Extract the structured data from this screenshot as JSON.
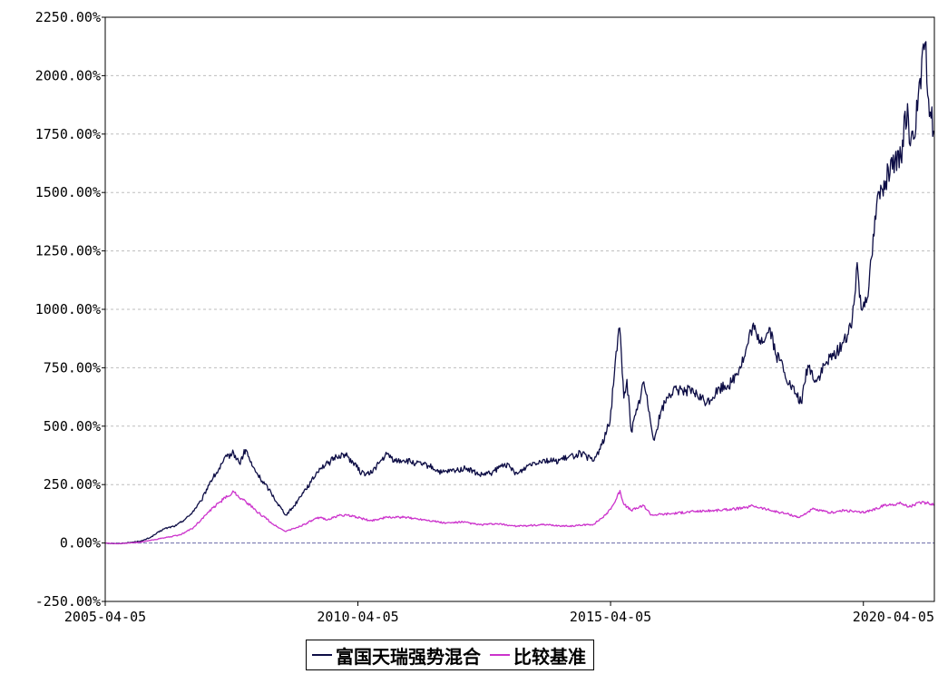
{
  "chart_data": {
    "type": "line",
    "title": "",
    "xlabel": "",
    "ylabel": "",
    "x_ticks": [
      "2005-04-05",
      "2010-04-05",
      "2015-04-05",
      "2020-04-05"
    ],
    "y_ticks": [
      "-250.00%",
      "0.00%",
      "250.00%",
      "500.00%",
      "750.00%",
      "1000.00%",
      "1250.00%",
      "1500.00%",
      "1750.00%",
      "2000.00%",
      "2250.00%"
    ],
    "ylim": [
      -250,
      2250
    ],
    "xlim": [
      "2005-04-05",
      "2021-08-31"
    ],
    "grid": true,
    "legend_position": "bottom",
    "series": [
      {
        "name": "富国天瑞强势混合",
        "color": "#0d0d45",
        "points": [
          [
            "2005-04-05",
            0
          ],
          [
            "2005-07-01",
            -3
          ],
          [
            "2005-10-01",
            2
          ],
          [
            "2006-01-01",
            10
          ],
          [
            "2006-03-01",
            25
          ],
          [
            "2006-06-01",
            60
          ],
          [
            "2006-09-01",
            75
          ],
          [
            "2006-12-01",
            115
          ],
          [
            "2007-03-01",
            180
          ],
          [
            "2007-05-01",
            260
          ],
          [
            "2007-07-01",
            310
          ],
          [
            "2007-09-01",
            370
          ],
          [
            "2007-10-20",
            385
          ],
          [
            "2007-12-01",
            340
          ],
          [
            "2008-01-15",
            400
          ],
          [
            "2008-03-01",
            330
          ],
          [
            "2008-05-01",
            275
          ],
          [
            "2008-07-01",
            230
          ],
          [
            "2008-09-01",
            170
          ],
          [
            "2008-11-01",
            120
          ],
          [
            "2009-01-01",
            160
          ],
          [
            "2009-03-01",
            215
          ],
          [
            "2009-05-01",
            260
          ],
          [
            "2009-07-01",
            320
          ],
          [
            "2009-09-01",
            340
          ],
          [
            "2009-11-01",
            370
          ],
          [
            "2010-01-01",
            380
          ],
          [
            "2010-03-01",
            345
          ],
          [
            "2010-05-01",
            300
          ],
          [
            "2010-07-01",
            295
          ],
          [
            "2010-09-01",
            340
          ],
          [
            "2010-11-01",
            380
          ],
          [
            "2011-01-01",
            350
          ],
          [
            "2011-03-01",
            355
          ],
          [
            "2011-06-01",
            340
          ],
          [
            "2011-09-01",
            330
          ],
          [
            "2011-12-01",
            300
          ],
          [
            "2012-03-01",
            310
          ],
          [
            "2012-06-01",
            320
          ],
          [
            "2012-09-01",
            290
          ],
          [
            "2012-12-01",
            300
          ],
          [
            "2013-03-01",
            340
          ],
          [
            "2013-06-01",
            295
          ],
          [
            "2013-09-01",
            340
          ],
          [
            "2013-12-01",
            355
          ],
          [
            "2014-03-01",
            350
          ],
          [
            "2014-06-01",
            365
          ],
          [
            "2014-09-01",
            385
          ],
          [
            "2014-12-01",
            350
          ],
          [
            "2015-02-01",
            420
          ],
          [
            "2015-04-01",
            520
          ],
          [
            "2015-05-15",
            820
          ],
          [
            "2015-06-10",
            920
          ],
          [
            "2015-07-10",
            620
          ],
          [
            "2015-08-01",
            700
          ],
          [
            "2015-09-01",
            480
          ],
          [
            "2015-10-15",
            570
          ],
          [
            "2015-12-01",
            690
          ],
          [
            "2016-01-10",
            560
          ],
          [
            "2016-02-15",
            440
          ],
          [
            "2016-04-01",
            560
          ],
          [
            "2016-06-01",
            640
          ],
          [
            "2016-09-01",
            660
          ],
          [
            "2016-12-01",
            640
          ],
          [
            "2017-03-01",
            600
          ],
          [
            "2017-06-01",
            660
          ],
          [
            "2017-09-01",
            690
          ],
          [
            "2017-12-01",
            800
          ],
          [
            "2018-01-25",
            930
          ],
          [
            "2018-03-01",
            870
          ],
          [
            "2018-05-01",
            880
          ],
          [
            "2018-06-01",
            920
          ],
          [
            "2018-07-15",
            800
          ],
          [
            "2018-09-01",
            760
          ],
          [
            "2018-10-15",
            680
          ],
          [
            "2018-12-01",
            640
          ],
          [
            "2019-01-10",
            600
          ],
          [
            "2019-03-01",
            760
          ],
          [
            "2019-05-01",
            690
          ],
          [
            "2019-07-01",
            760
          ],
          [
            "2019-09-01",
            800
          ],
          [
            "2019-11-01",
            850
          ],
          [
            "2020-01-10",
            920
          ],
          [
            "2020-02-20",
            1200
          ],
          [
            "2020-03-20",
            1000
          ],
          [
            "2020-05-15",
            1100
          ],
          [
            "2020-07-10",
            1450
          ],
          [
            "2020-09-01",
            1550
          ],
          [
            "2020-11-01",
            1600
          ],
          [
            "2021-01-01",
            1650
          ],
          [
            "2021-02-18",
            1880
          ],
          [
            "2021-03-10",
            1700
          ],
          [
            "2021-05-01",
            1850
          ],
          [
            "2021-06-25",
            2140
          ],
          [
            "2021-07-20",
            1900
          ],
          [
            "2021-08-31",
            1760
          ]
        ]
      },
      {
        "name": "比较基准",
        "color": "#cc33cc",
        "points": [
          [
            "2005-04-05",
            0
          ],
          [
            "2005-07-01",
            -3
          ],
          [
            "2005-10-01",
            0
          ],
          [
            "2006-01-01",
            5
          ],
          [
            "2006-04-01",
            15
          ],
          [
            "2006-07-01",
            25
          ],
          [
            "2006-10-01",
            35
          ],
          [
            "2007-01-01",
            65
          ],
          [
            "2007-04-01",
            120
          ],
          [
            "2007-07-01",
            170
          ],
          [
            "2007-10-20",
            220
          ],
          [
            "2007-12-15",
            190
          ],
          [
            "2008-02-01",
            170
          ],
          [
            "2008-04-01",
            135
          ],
          [
            "2008-06-01",
            110
          ],
          [
            "2008-08-01",
            80
          ],
          [
            "2008-10-25",
            50
          ],
          [
            "2009-01-01",
            62
          ],
          [
            "2009-04-01",
            85
          ],
          [
            "2009-07-01",
            110
          ],
          [
            "2009-09-01",
            100
          ],
          [
            "2009-12-01",
            120
          ],
          [
            "2010-03-01",
            115
          ],
          [
            "2010-07-01",
            95
          ],
          [
            "2010-11-01",
            110
          ],
          [
            "2011-03-01",
            110
          ],
          [
            "2011-08-01",
            100
          ],
          [
            "2012-01-01",
            85
          ],
          [
            "2012-05-01",
            90
          ],
          [
            "2012-09-01",
            78
          ],
          [
            "2013-01-01",
            82
          ],
          [
            "2013-06-01",
            72
          ],
          [
            "2013-12-01",
            78
          ],
          [
            "2014-06-01",
            72
          ],
          [
            "2014-12-01",
            80
          ],
          [
            "2015-03-01",
            120
          ],
          [
            "2015-05-01",
            170
          ],
          [
            "2015-06-12",
            225
          ],
          [
            "2015-07-10",
            165
          ],
          [
            "2015-09-01",
            140
          ],
          [
            "2015-12-01",
            160
          ],
          [
            "2016-01-25",
            120
          ],
          [
            "2016-06-01",
            125
          ],
          [
            "2016-12-01",
            135
          ],
          [
            "2017-06-01",
            140
          ],
          [
            "2017-12-01",
            150
          ],
          [
            "2018-01-25",
            160
          ],
          [
            "2018-06-01",
            140
          ],
          [
            "2018-10-01",
            125
          ],
          [
            "2019-01-01",
            110
          ],
          [
            "2019-04-01",
            145
          ],
          [
            "2019-08-01",
            130
          ],
          [
            "2019-12-01",
            140
          ],
          [
            "2020-03-20",
            130
          ],
          [
            "2020-06-01",
            140
          ],
          [
            "2020-09-01",
            160
          ],
          [
            "2021-01-01",
            170
          ],
          [
            "2021-03-01",
            155
          ],
          [
            "2021-06-01",
            175
          ],
          [
            "2021-08-31",
            165
          ]
        ]
      }
    ]
  }
}
